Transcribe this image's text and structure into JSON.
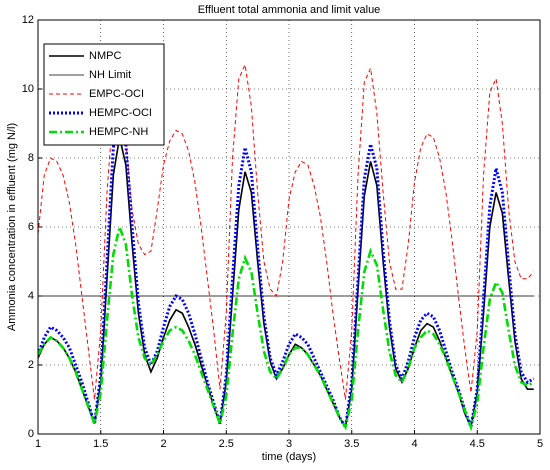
{
  "chart_data": {
    "type": "line",
    "title": "Effluent total ammonia and limit value",
    "xlabel": "time (days)",
    "ylabel": "Ammonia concentration in effluent (mg N/l)",
    "x": [
      1.0,
      1.05,
      1.1,
      1.15,
      1.2,
      1.25,
      1.3,
      1.35,
      1.4,
      1.45,
      1.5,
      1.55,
      1.6,
      1.65,
      1.7,
      1.75,
      1.8,
      1.85,
      1.9,
      1.95,
      2.0,
      2.05,
      2.1,
      2.15,
      2.2,
      2.25,
      2.3,
      2.35,
      2.4,
      2.45,
      2.5,
      2.55,
      2.6,
      2.65,
      2.7,
      2.75,
      2.8,
      2.85,
      2.9,
      2.95,
      3.0,
      3.05,
      3.1,
      3.15,
      3.2,
      3.25,
      3.3,
      3.35,
      3.4,
      3.45,
      3.5,
      3.55,
      3.6,
      3.65,
      3.7,
      3.75,
      3.8,
      3.85,
      3.9,
      3.95,
      4.0,
      4.05,
      4.1,
      4.15,
      4.2,
      4.25,
      4.3,
      4.35,
      4.4,
      4.45,
      4.5,
      4.55,
      4.6,
      4.65,
      4.7,
      4.75,
      4.8,
      4.85,
      4.9,
      4.95
    ],
    "series": [
      {
        "name": "NMPC",
        "color": "#000000",
        "linestyle": "solid",
        "linewidth": 1.6,
        "values": [
          2.2,
          2.6,
          2.8,
          2.7,
          2.5,
          2.2,
          1.8,
          1.3,
          0.8,
          0.3,
          1.5,
          4.5,
          7.5,
          8.6,
          7.8,
          5.5,
          3.5,
          2.3,
          1.8,
          2.2,
          2.8,
          3.3,
          3.6,
          3.5,
          3.1,
          2.6,
          2.0,
          1.4,
          0.8,
          0.3,
          1.5,
          4.0,
          6.5,
          7.6,
          7.0,
          5.0,
          3.2,
          2.1,
          1.6,
          1.9,
          2.3,
          2.6,
          2.5,
          2.3,
          2.0,
          1.7,
          1.3,
          0.9,
          0.5,
          0.2,
          1.3,
          4.2,
          6.9,
          7.9,
          7.2,
          5.0,
          3.1,
          1.9,
          1.5,
          1.9,
          2.5,
          3.0,
          3.2,
          3.1,
          2.7,
          2.2,
          1.7,
          1.2,
          0.6,
          0.2,
          1.2,
          3.5,
          6.0,
          7.0,
          6.4,
          4.5,
          2.7,
          1.6,
          1.3,
          1.3
        ]
      },
      {
        "name": "NH Limit",
        "color": "#000000",
        "linestyle": "solid",
        "linewidth": 0.8,
        "values": [
          4,
          4,
          4,
          4,
          4,
          4,
          4,
          4,
          4,
          4,
          4,
          4,
          4,
          4,
          4,
          4,
          4,
          4,
          4,
          4,
          4,
          4,
          4,
          4,
          4,
          4,
          4,
          4,
          4,
          4,
          4,
          4,
          4,
          4,
          4,
          4,
          4,
          4,
          4,
          4,
          4,
          4,
          4,
          4,
          4,
          4,
          4,
          4,
          4,
          4,
          4,
          4,
          4,
          4,
          4,
          4,
          4,
          4,
          4,
          4,
          4,
          4,
          4,
          4,
          4,
          4,
          4,
          4,
          4,
          4,
          4,
          4,
          4,
          4,
          4,
          4,
          4,
          4,
          4,
          4
        ]
      },
      {
        "name": "EMPC-OCI",
        "color": "#ff0000",
        "linestyle": "dashed",
        "linewidth": 1,
        "values": [
          5.8,
          7.5,
          8.0,
          7.9,
          7.5,
          6.7,
          5.5,
          4.0,
          2.5,
          1.0,
          3.0,
          7.0,
          9.5,
          9.9,
          8.5,
          6.5,
          5.5,
          5.2,
          5.3,
          6.5,
          7.8,
          8.5,
          8.8,
          8.7,
          8.2,
          7.3,
          6.0,
          4.5,
          3.0,
          1.3,
          3.5,
          8.0,
          10.3,
          10.7,
          9.5,
          7.0,
          5.0,
          4.2,
          4.0,
          5.0,
          6.8,
          7.6,
          7.9,
          7.8,
          7.2,
          6.3,
          5.0,
          3.5,
          2.2,
          1.0,
          3.0,
          7.5,
          10.2,
          10.6,
          9.3,
          7.0,
          5.0,
          4.2,
          4.2,
          5.5,
          7.3,
          8.3,
          8.7,
          8.6,
          8.0,
          7.0,
          5.6,
          4.0,
          2.5,
          1.2,
          3.0,
          7.5,
          9.9,
          10.3,
          9.0,
          6.5,
          5.0,
          4.5,
          4.5,
          4.7
        ]
      },
      {
        "name": "HEMPC-OCI",
        "color": "#0000ff",
        "linestyle": "dotted",
        "linewidth": 3,
        "values": [
          2.3,
          2.8,
          3.1,
          3.0,
          2.8,
          2.5,
          2.0,
          1.5,
          0.9,
          0.3,
          1.7,
          5.0,
          8.3,
          9.2,
          8.4,
          6.0,
          3.8,
          2.5,
          2.0,
          2.4,
          3.1,
          3.7,
          4.0,
          3.9,
          3.5,
          2.9,
          2.2,
          1.5,
          0.9,
          0.3,
          1.7,
          4.5,
          7.2,
          8.3,
          7.6,
          5.4,
          3.4,
          2.2,
          1.7,
          2.1,
          2.6,
          2.9,
          2.8,
          2.6,
          2.2,
          1.8,
          1.4,
          1.0,
          0.5,
          0.2,
          1.5,
          4.5,
          7.4,
          8.4,
          7.7,
          5.3,
          3.3,
          2.0,
          1.6,
          2.1,
          2.8,
          3.3,
          3.5,
          3.4,
          3.0,
          2.4,
          1.8,
          1.3,
          0.7,
          0.2,
          1.3,
          3.9,
          6.6,
          7.7,
          7.0,
          4.9,
          2.9,
          1.8,
          1.5,
          1.6
        ]
      },
      {
        "name": "HEMPC-NH",
        "color": "#00dd00",
        "linestyle": "dashdot",
        "linewidth": 2.6,
        "values": [
          2.3,
          2.6,
          2.8,
          2.7,
          2.5,
          2.2,
          1.8,
          1.3,
          0.8,
          0.3,
          1.2,
          3.3,
          5.2,
          6.0,
          5.5,
          4.0,
          2.8,
          2.2,
          2.0,
          2.3,
          2.7,
          3.0,
          3.1,
          3.0,
          2.7,
          2.3,
          1.8,
          1.3,
          0.8,
          0.3,
          1.1,
          2.9,
          4.5,
          5.1,
          4.7,
          3.5,
          2.4,
          1.8,
          1.6,
          1.9,
          2.3,
          2.5,
          2.5,
          2.3,
          2.0,
          1.7,
          1.3,
          0.9,
          0.5,
          0.2,
          1.0,
          3.0,
          4.7,
          5.3,
          4.9,
          3.6,
          2.4,
          1.7,
          1.5,
          1.9,
          2.5,
          2.8,
          3.0,
          2.9,
          2.6,
          2.2,
          1.7,
          1.2,
          0.7,
          0.2,
          0.9,
          2.5,
          3.9,
          4.4,
          4.1,
          3.0,
          2.0,
          1.5,
          1.4,
          1.5
        ]
      }
    ],
    "xlim": [
      1,
      5
    ],
    "xticks": [
      1,
      1.5,
      2,
      2.5,
      3,
      3.5,
      4,
      4.5,
      5
    ],
    "ylim": [
      0,
      12
    ],
    "yticks": [
      0,
      2,
      4,
      6,
      8,
      10,
      12
    ],
    "grid": true,
    "legend": "upper left"
  }
}
